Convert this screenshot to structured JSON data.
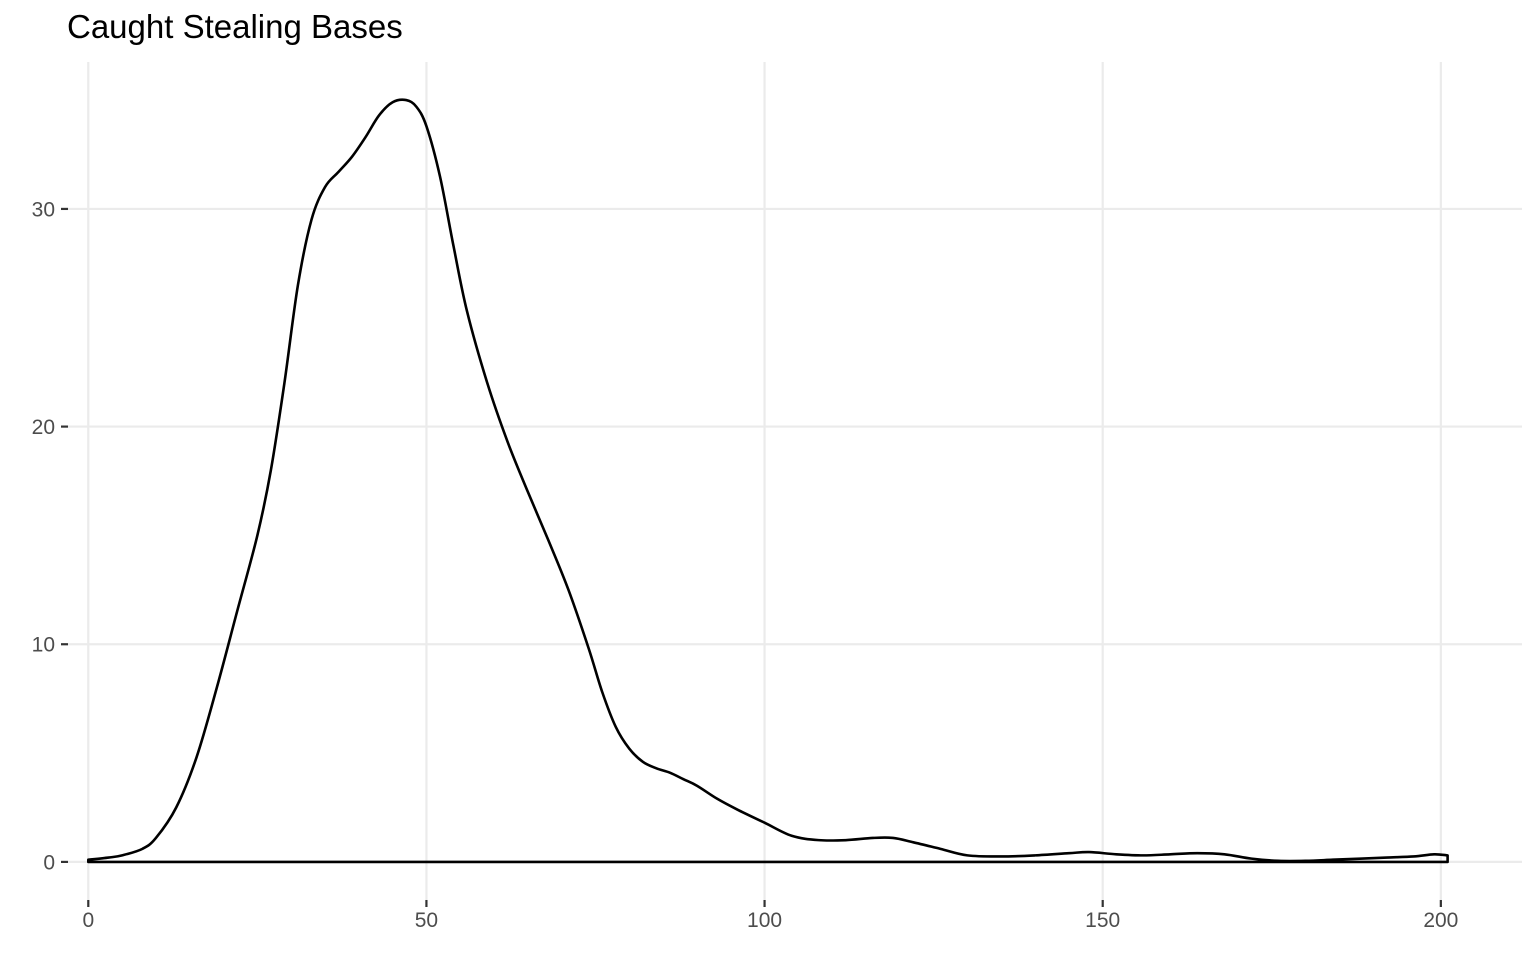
{
  "chart_data": {
    "type": "area",
    "title": "Caught Stealing Bases",
    "xlabel": "",
    "ylabel": "",
    "xlim": [
      -3,
      212
    ],
    "ylim": [
      -1.75,
      36.75
    ],
    "x_ticks": [
      0,
      50,
      100,
      150,
      200
    ],
    "y_ticks": [
      0,
      10,
      20,
      30
    ],
    "grid": true,
    "legend": "none",
    "line_color": "#000000",
    "grid_color": "#ebebeb",
    "tick_color": "#333333",
    "series": [
      {
        "x": [
          0,
          3,
          5,
          8,
          10,
          13,
          16,
          19,
          22,
          25,
          27,
          29,
          31,
          33,
          35,
          37,
          39,
          41,
          43,
          45,
          47,
          48.5,
          50,
          52,
          54,
          56,
          59,
          62,
          65,
          68,
          71,
          74,
          76,
          78,
          80,
          82,
          84,
          86,
          88,
          90,
          93,
          96,
          100,
          104,
          108,
          112,
          116,
          119,
          122,
          126,
          130,
          135,
          140,
          145,
          148,
          152,
          156,
          160,
          164,
          168,
          172,
          176,
          180,
          184,
          188,
          192,
          196,
          199,
          201
        ],
        "y": [
          0.1,
          0.2,
          0.3,
          0.6,
          1.1,
          2.5,
          4.8,
          8.0,
          11.5,
          15.0,
          18.0,
          22.0,
          26.5,
          29.5,
          31.0,
          31.7,
          32.4,
          33.3,
          34.3,
          34.9,
          35.0,
          34.7,
          33.8,
          31.5,
          28.3,
          25.3,
          22.0,
          19.3,
          17.0,
          14.8,
          12.5,
          9.8,
          7.8,
          6.2,
          5.2,
          4.6,
          4.3,
          4.1,
          3.8,
          3.5,
          2.9,
          2.4,
          1.8,
          1.2,
          1.0,
          1.0,
          1.1,
          1.1,
          0.9,
          0.6,
          0.3,
          0.25,
          0.3,
          0.4,
          0.45,
          0.35,
          0.3,
          0.35,
          0.4,
          0.35,
          0.15,
          0.05,
          0.05,
          0.1,
          0.15,
          0.2,
          0.25,
          0.35,
          0.3
        ]
      }
    ]
  }
}
